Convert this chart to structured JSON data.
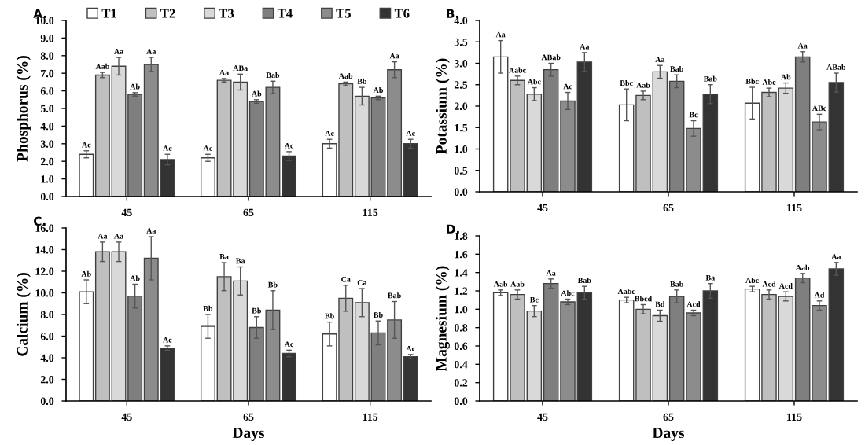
{
  "chart_data": [
    {
      "type": "bar",
      "title": "A.",
      "ylabel": "Phosphorus (%)",
      "categories": [
        "45",
        "65",
        "115"
      ],
      "ylim": [
        0,
        10
      ],
      "yticks": [
        {
          "value": 0,
          "label": "0.0"
        },
        {
          "value": 1,
          "label": "1.0"
        },
        {
          "value": 2,
          "label": "2.0"
        },
        {
          "value": 3,
          "label": "3.0"
        },
        {
          "value": 4,
          "label": "4.0"
        },
        {
          "value": 5,
          "label": "5.0"
        },
        {
          "value": 6,
          "label": "6.0"
        },
        {
          "value": 7,
          "label": "7.0"
        },
        {
          "value": 8,
          "label": "8.0"
        },
        {
          "value": 9,
          "label": "9.0"
        },
        {
          "value": 10,
          "label": "10.0"
        }
      ],
      "legend": "top",
      "grid": false,
      "series": [
        {
          "name": "T1",
          "color": "#ffffff",
          "values": [
            2.4,
            2.2,
            3.0
          ],
          "errors": [
            0.2,
            0.2,
            0.25
          ],
          "value_labels": [
            "Ac",
            "Ac",
            "Ac"
          ]
        },
        {
          "name": "T2",
          "color": "#bfbfbf",
          "values": [
            6.9,
            6.6,
            6.4
          ],
          "errors": [
            0.15,
            0.1,
            0.1
          ],
          "value_labels": [
            "Aab",
            "Aa",
            "Aab"
          ]
        },
        {
          "name": "T3",
          "color": "#d9d9d9",
          "values": [
            7.4,
            6.5,
            5.7
          ],
          "errors": [
            0.5,
            0.45,
            0.5
          ],
          "value_labels": [
            "Aa",
            "ABa",
            "Bb"
          ]
        },
        {
          "name": "T4",
          "color": "#7f7f7f",
          "values": [
            5.8,
            5.4,
            5.6
          ],
          "errors": [
            0.1,
            0.1,
            0.1
          ],
          "value_labels": [
            "Ab",
            "Ab",
            "Ab"
          ]
        },
        {
          "name": "T5",
          "color": "#8c8c8c",
          "values": [
            7.5,
            6.2,
            7.2
          ],
          "errors": [
            0.4,
            0.35,
            0.45
          ],
          "value_labels": [
            "Aa",
            "Bab",
            "Aa"
          ]
        },
        {
          "name": "T6",
          "color": "#333333",
          "values": [
            2.1,
            2.3,
            3.0
          ],
          "errors": [
            0.3,
            0.25,
            0.25
          ],
          "value_labels": [
            "Ac",
            "Ac",
            "Ac"
          ]
        }
      ]
    },
    {
      "type": "bar",
      "title": "B.",
      "ylabel": "Potassium (%)",
      "categories": [
        "45",
        "65",
        "115"
      ],
      "ylim": [
        0,
        4
      ],
      "yticks": [
        {
          "value": 0,
          "label": "0.0"
        },
        {
          "value": 0.5,
          "label": "0.5"
        },
        {
          "value": 1,
          "label": "1.0"
        },
        {
          "value": 1.5,
          "label": "1.5"
        },
        {
          "value": 2,
          "label": "2.0"
        },
        {
          "value": 2.5,
          "label": "2.5"
        },
        {
          "value": 3,
          "label": "3.0"
        },
        {
          "value": 3.5,
          "label": "3.5"
        },
        {
          "value": 4,
          "label": "4.0"
        }
      ],
      "grid": false,
      "series": [
        {
          "color": "#ffffff",
          "values": [
            3.15,
            2.03,
            2.07
          ],
          "errors": [
            0.38,
            0.37,
            0.37
          ],
          "value_labels": [
            "Aa",
            "Bbc",
            "Bbc"
          ]
        },
        {
          "color": "#bfbfbf",
          "values": [
            2.6,
            2.25,
            2.32
          ],
          "errors": [
            0.1,
            0.1,
            0.1
          ],
          "value_labels": [
            "Aabc",
            "Aab",
            "Abc"
          ]
        },
        {
          "color": "#d9d9d9",
          "values": [
            2.28,
            2.8,
            2.42
          ],
          "errors": [
            0.15,
            0.15,
            0.12
          ],
          "value_labels": [
            "Abc",
            "Aa",
            "Ab"
          ]
        },
        {
          "color": "#7f7f7f",
          "values": [
            2.85,
            2.58,
            3.15
          ],
          "errors": [
            0.15,
            0.15,
            0.12
          ],
          "value_labels": [
            "ABab",
            "Bab",
            "Aa"
          ]
        },
        {
          "color": "#8c8c8c",
          "values": [
            2.12,
            1.48,
            1.63
          ],
          "errors": [
            0.2,
            0.18,
            0.18
          ],
          "value_labels": [
            "Ac",
            "Bc",
            "ABc"
          ]
        },
        {
          "color": "#333333",
          "values": [
            3.03,
            2.28,
            2.55
          ],
          "errors": [
            0.22,
            0.22,
            0.22
          ],
          "value_labels": [
            "Aa",
            "Bab",
            "ABab"
          ]
        }
      ]
    },
    {
      "type": "bar",
      "title": "C.",
      "ylabel": "Calcium (%)",
      "xlabel": "Days",
      "categories": [
        "45",
        "65",
        "115"
      ],
      "ylim": [
        0,
        16
      ],
      "yticks": [
        {
          "value": 0,
          "label": "0.0"
        },
        {
          "value": 2,
          "label": "2.0"
        },
        {
          "value": 4,
          "label": "4.0"
        },
        {
          "value": 6,
          "label": "6.0"
        },
        {
          "value": 8,
          "label": "8.0"
        },
        {
          "value": 10,
          "label": "10.0"
        },
        {
          "value": 12,
          "label": "12.0"
        },
        {
          "value": 14,
          "label": "14.0"
        },
        {
          "value": 16,
          "label": "16.0"
        }
      ],
      "grid": false,
      "series": [
        {
          "color": "#ffffff",
          "values": [
            10.1,
            6.9,
            6.2
          ],
          "errors": [
            1.1,
            1.1,
            1.1
          ],
          "value_labels": [
            "Ab",
            "Bb",
            "Bb"
          ]
        },
        {
          "color": "#bfbfbf",
          "values": [
            13.8,
            11.5,
            9.5
          ],
          "errors": [
            0.9,
            1.3,
            1.2
          ],
          "value_labels": [
            "Aa",
            "Ba",
            "Ca"
          ]
        },
        {
          "color": "#d9d9d9",
          "values": [
            13.8,
            11.1,
            9.1
          ],
          "errors": [
            0.9,
            1.3,
            1.3
          ],
          "value_labels": [
            "Aa",
            "Ba",
            "Ca"
          ]
        },
        {
          "color": "#7f7f7f",
          "values": [
            9.7,
            6.8,
            6.3
          ],
          "errors": [
            1.1,
            1.0,
            1.1
          ],
          "value_labels": [
            "Ab",
            "Bb",
            "Bb"
          ]
        },
        {
          "color": "#8c8c8c",
          "values": [
            13.2,
            8.4,
            7.5
          ],
          "errors": [
            2.0,
            1.8,
            1.7
          ],
          "value_labels": [
            "Aa",
            "Bb",
            "Bab"
          ]
        },
        {
          "color": "#333333",
          "values": [
            4.9,
            4.4,
            4.1
          ],
          "errors": [
            0.2,
            0.3,
            0.2
          ],
          "value_labels": [
            "Ac",
            "Ac",
            "Ac"
          ]
        }
      ]
    },
    {
      "type": "bar",
      "title": "D.",
      "ylabel": "Magnesium (%)",
      "xlabel": "Days",
      "categories": [
        "45",
        "65",
        "115"
      ],
      "ylim": [
        0,
        1.8
      ],
      "yticks": [
        {
          "value": 0,
          "label": "0.0"
        },
        {
          "value": 0.2,
          "label": "0.2"
        },
        {
          "value": 0.4,
          "label": "0.4"
        },
        {
          "value": 0.6,
          "label": "0.6"
        },
        {
          "value": 0.8,
          "label": "0.8"
        },
        {
          "value": 1.0,
          "label": "1.0"
        },
        {
          "value": 1.2,
          "label": "1.2"
        },
        {
          "value": 1.4,
          "label": "1.4"
        },
        {
          "value": 1.6,
          "label": "1.6"
        },
        {
          "value": 1.8,
          "label": "1.8"
        }
      ],
      "grid": false,
      "series": [
        {
          "color": "#ffffff",
          "values": [
            1.18,
            1.1,
            1.22
          ],
          "errors": [
            0.03,
            0.03,
            0.03
          ],
          "value_labels": [
            "Aab",
            "Aabc",
            "Abc"
          ]
        },
        {
          "color": "#bfbfbf",
          "values": [
            1.16,
            1.0,
            1.16
          ],
          "errors": [
            0.05,
            0.05,
            0.05
          ],
          "value_labels": [
            "Aab",
            "Bbcd",
            "Acd"
          ]
        },
        {
          "color": "#d9d9d9",
          "values": [
            0.98,
            0.93,
            1.14
          ],
          "errors": [
            0.06,
            0.06,
            0.05
          ],
          "value_labels": [
            "Bc",
            "Bd",
            "Acd"
          ]
        },
        {
          "color": "#7f7f7f",
          "values": [
            1.28,
            1.14,
            1.34
          ],
          "errors": [
            0.05,
            0.07,
            0.05
          ],
          "value_labels": [
            "Aa",
            "Bab",
            "Aab"
          ]
        },
        {
          "color": "#8c8c8c",
          "values": [
            1.08,
            0.96,
            1.04
          ],
          "errors": [
            0.03,
            0.03,
            0.05
          ],
          "value_labels": [
            "Abc",
            "Acd",
            "Ad"
          ]
        },
        {
          "color": "#333333",
          "values": [
            1.18,
            1.2,
            1.44
          ],
          "errors": [
            0.07,
            0.08,
            0.07
          ],
          "value_labels": [
            "Bab",
            "Ba",
            "Aa"
          ]
        }
      ]
    }
  ]
}
